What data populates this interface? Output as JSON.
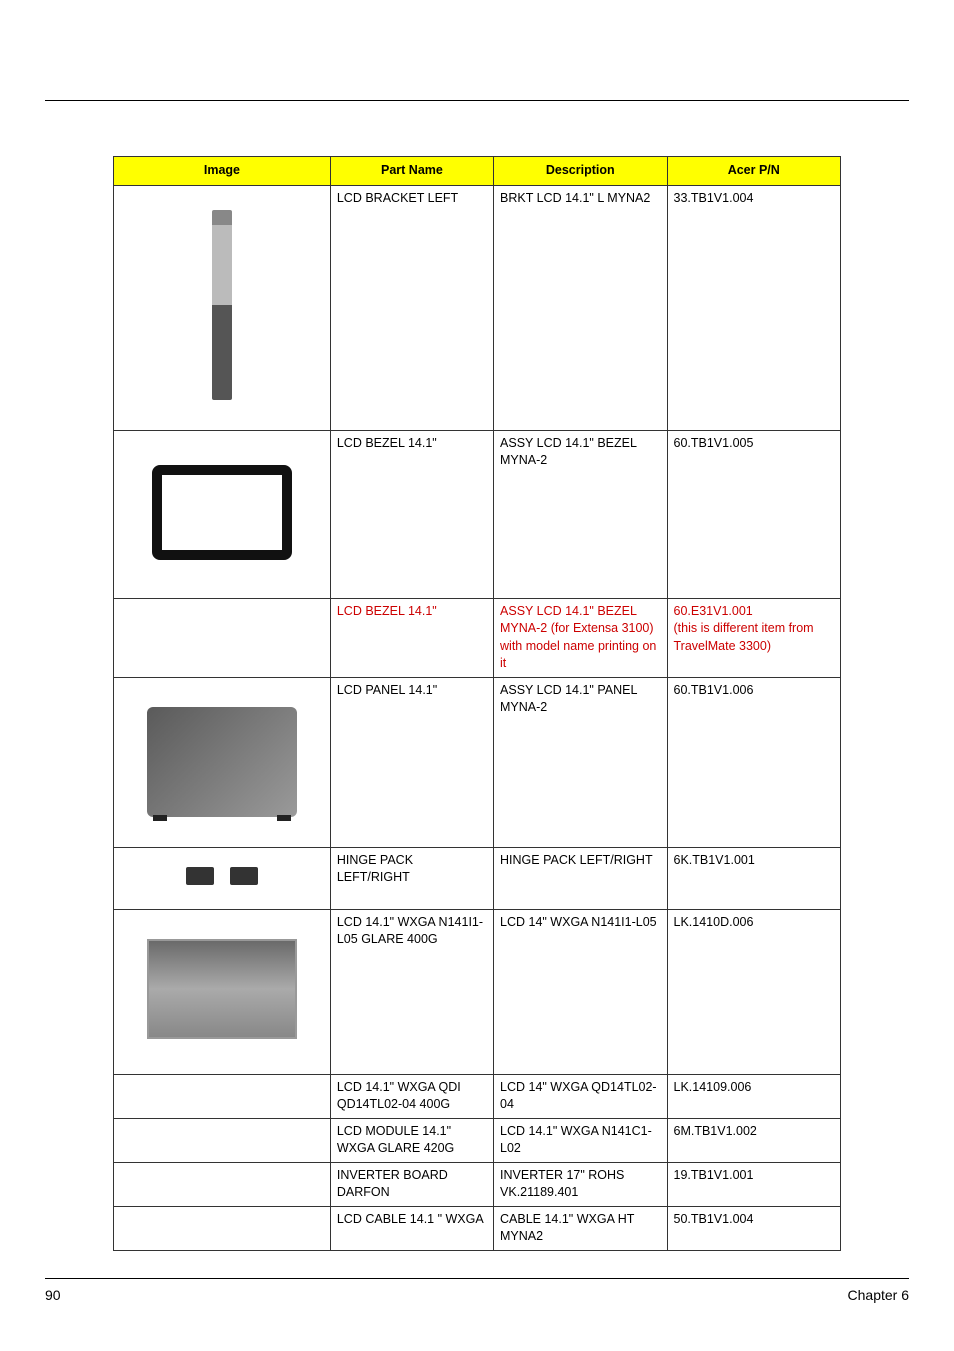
{
  "table": {
    "headers": {
      "image": "Image",
      "part_name": "Part Name",
      "description": "Description",
      "acer_pn": "Acer P/N"
    },
    "rows": [
      {
        "part_name": "LCD BRACKET LEFT",
        "description": "BRKT LCD 14.1\" L MYNA2",
        "acer_pn": "33.TB1V1.004",
        "image": "bracket",
        "row_class": "row-tall-1",
        "red": false
      },
      {
        "part_name": "LCD BEZEL 14.1\"",
        "description": "ASSY LCD 14.1\" BEZEL MYNA-2",
        "acer_pn": "60.TB1V1.005",
        "image": "bezel",
        "row_class": "row-tall-2",
        "red": false
      },
      {
        "part_name": "LCD BEZEL 14.1\"",
        "description": "ASSY LCD 14.1\" BEZEL MYNA-2 (for Extensa 3100) with model name printing on it",
        "acer_pn": "60.E31V1.001",
        "acer_pn_note": "(this is different item from TravelMate 3300)",
        "image": "",
        "row_class": "row-short",
        "red": true
      },
      {
        "part_name": "LCD PANEL 14.1\"",
        "description": "ASSY LCD 14.1\" PANEL MYNA-2",
        "acer_pn": "60.TB1V1.006",
        "image": "panel",
        "row_class": "row-med",
        "red": false
      },
      {
        "part_name": "HINGE PACK LEFT/RIGHT",
        "description": "HINGE PACK LEFT/RIGHT",
        "acer_pn": "6K.TB1V1.001",
        "image": "hinge",
        "row_class": "row-hinge",
        "red": false
      },
      {
        "part_name": "LCD 14.1\" WXGA N141I1-L05 GLARE 400G",
        "description": "LCD 14\" WXGA N141I1-L05",
        "acer_pn": "LK.1410D.006",
        "image": "lcd",
        "row_class": "row-lcd14",
        "red": false
      },
      {
        "part_name": "LCD 14.1\" WXGA QDI QD14TL02-04 400G",
        "description": "LCD 14\" WXGA QD14TL02-04",
        "acer_pn": "LK.14109.006",
        "image": "",
        "row_class": "row-short",
        "red": false
      },
      {
        "part_name": "LCD MODULE 14.1\" WXGA GLARE 420G",
        "description": "LCD 14.1\" WXGA N141C1-L02",
        "acer_pn": "6M.TB1V1.002",
        "image": "",
        "row_class": "row-short",
        "red": false
      },
      {
        "part_name": "INVERTER BOARD DARFON",
        "description": "INVERTER 17\" ROHS VK.21189.401",
        "acer_pn": "19.TB1V1.001",
        "image": "",
        "row_class": "row-short",
        "red": false
      },
      {
        "part_name": "LCD CABLE 14.1 \" WXGA",
        "description": "CABLE 14.1\" WXGA HT MYNA2",
        "acer_pn": "50.TB1V1.004",
        "image": "",
        "row_class": "row-short",
        "red": false
      }
    ]
  },
  "footer": {
    "page_number": "90",
    "chapter": "Chapter 6"
  },
  "colors": {
    "header_bg": "#ffff00",
    "red_text": "#cc0000",
    "border": "#333333"
  }
}
